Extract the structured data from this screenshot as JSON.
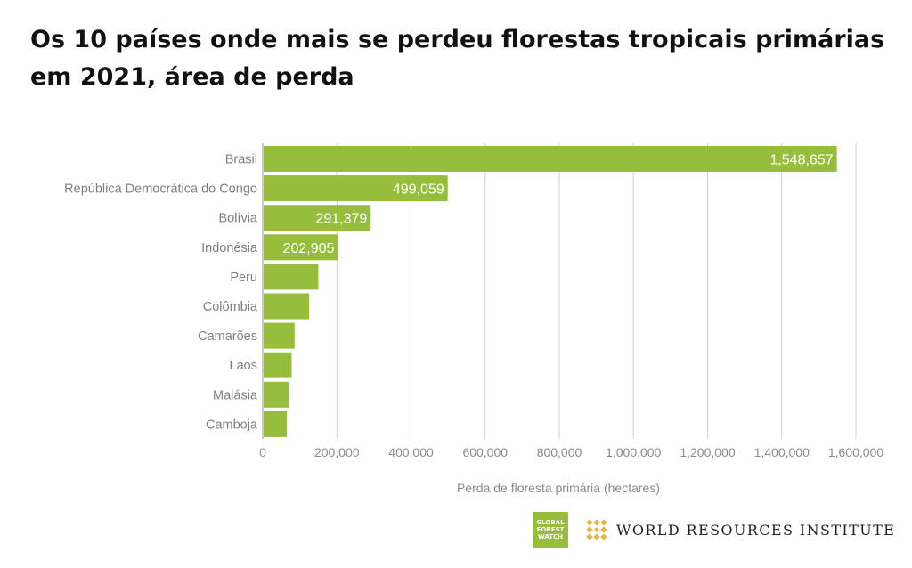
{
  "title": "Os 10 países onde mais se perdeu florestas tropicais primárias em 2021, área de perda",
  "chart_data": {
    "type": "bar",
    "orientation": "horizontal",
    "title": "Os 10 países onde mais se perdeu florestas tropicais primárias em 2021, área de perda",
    "xlabel": "Perda de floresta primária (hectares)",
    "ylabel": "",
    "xlim": [
      0,
      1600000
    ],
    "xticks": [
      "0",
      "200,000",
      "400,000",
      "600,000",
      "800,000",
      "1,000,000",
      "1,200,000",
      "1,400,000",
      "1,600,000"
    ],
    "xtick_values": [
      0,
      200000,
      400000,
      600000,
      800000,
      1000000,
      1200000,
      1400000,
      1600000
    ],
    "grid": true,
    "bar_color": "#97bd3d",
    "categories": [
      "Brasil",
      "República Democrática do Congo",
      "Bolívia",
      "Indonésia",
      "Peru",
      "Colômbia",
      "Camarões",
      "Laos",
      "Malásia",
      "Camboja"
    ],
    "values": [
      1548657,
      499059,
      291379,
      202905,
      150000,
      125000,
      86000,
      78000,
      70000,
      65000
    ],
    "data_labels": [
      "1,548,657",
      "499,059",
      "291,379",
      "202,905",
      "",
      "",
      "",
      "",
      "",
      ""
    ]
  },
  "logos": {
    "gfw_lines": [
      "GLOBAL",
      "FOREST",
      "WATCH"
    ],
    "wri_label": "WORLD RESOURCES INSTITUTE",
    "gfw_color": "#97bd3d",
    "wri_color": "#e8b33f"
  }
}
